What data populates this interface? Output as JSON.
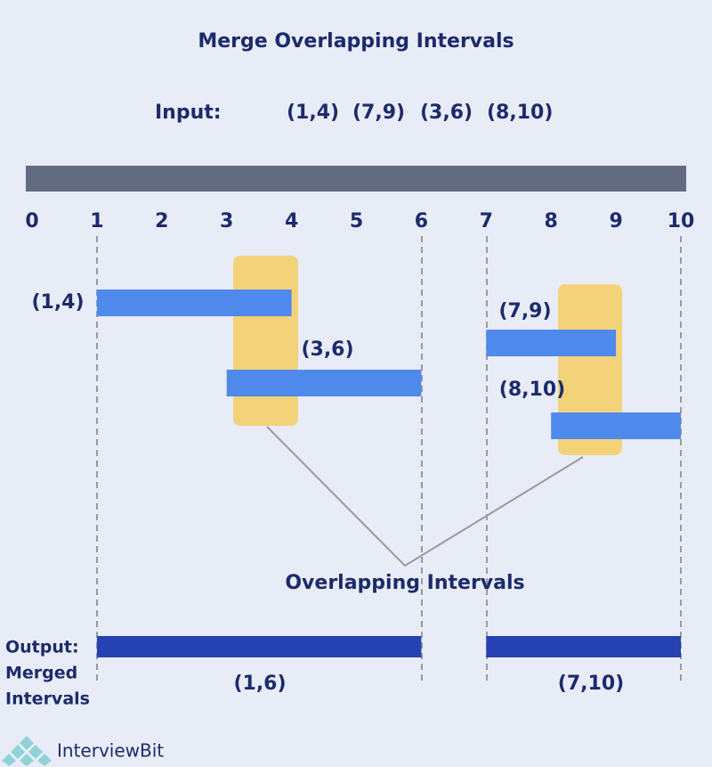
{
  "title": "Merge Overlapping Intervals",
  "input": {
    "label": "Input:",
    "intervals": [
      "(1,4)",
      "(7,9)",
      "(3,6)",
      "(8,10)"
    ]
  },
  "axis": {
    "ticks": [
      0,
      1,
      2,
      3,
      4,
      5,
      6,
      7,
      8,
      9,
      10
    ]
  },
  "intervals": [
    {
      "label": "(1,4)",
      "start": 1,
      "end": 4
    },
    {
      "label": "(3,6)",
      "start": 3,
      "end": 6
    },
    {
      "label": "(7,9)",
      "start": 7,
      "end": 9
    },
    {
      "label": "(8,10)",
      "start": 8,
      "end": 10
    }
  ],
  "overlap_label": "Overlapping Intervals",
  "output": {
    "label": "Output:",
    "sublabel": [
      "Merged",
      "Intervals"
    ],
    "merged": [
      {
        "label": "(1,6)",
        "start": 1,
        "end": 6
      },
      {
        "label": "(7,10)",
        "start": 7,
        "end": 10
      }
    ]
  },
  "logo": "InterviewBit"
}
